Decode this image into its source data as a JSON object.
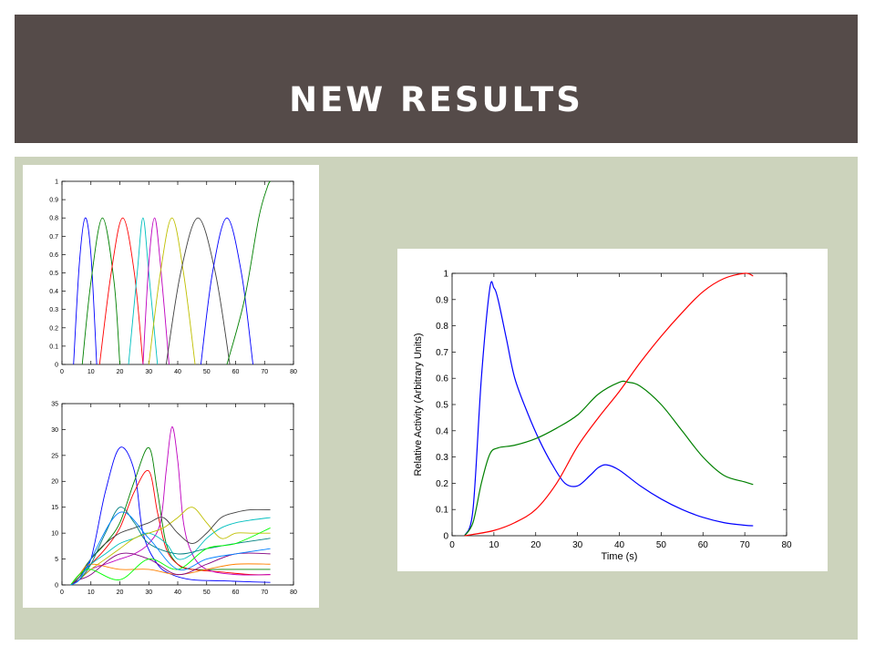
{
  "slide": {
    "title": "NEW RESULTS",
    "header_color": "#554b49",
    "background_color": "#ccd3bc"
  },
  "chart_data": [
    {
      "type": "line",
      "title": "",
      "xlabel": "",
      "ylabel": "",
      "xlim": [
        0,
        80
      ],
      "ylim": [
        0,
        1
      ],
      "xticks": [
        0,
        10,
        20,
        30,
        40,
        50,
        60,
        70,
        80
      ],
      "yticks": [
        0,
        0.1,
        0.2,
        0.3,
        0.4,
        0.5,
        0.6,
        0.7,
        0.8,
        0.9,
        1
      ],
      "grid": false,
      "legend": "none",
      "series": [
        {
          "color": "#0000ff",
          "x": [
            4,
            6,
            8,
            10,
            12
          ],
          "y": [
            0,
            0.55,
            0.8,
            0.6,
            0
          ]
        },
        {
          "color": "#008000",
          "x": [
            7,
            10,
            14,
            18,
            20
          ],
          "y": [
            0,
            0.45,
            0.8,
            0.45,
            0
          ]
        },
        {
          "color": "#ff0000",
          "x": [
            13,
            17,
            21,
            25,
            28
          ],
          "y": [
            0,
            0.5,
            0.8,
            0.5,
            0
          ]
        },
        {
          "color": "#00bfbf",
          "x": [
            23,
            26,
            28,
            30,
            33
          ],
          "y": [
            0,
            0.5,
            0.8,
            0.5,
            0
          ]
        },
        {
          "color": "#bf00bf",
          "x": [
            28,
            30,
            32,
            34,
            37
          ],
          "y": [
            0,
            0.55,
            0.8,
            0.55,
            0
          ]
        },
        {
          "color": "#bfbf00",
          "x": [
            30,
            34,
            38,
            42,
            46
          ],
          "y": [
            0,
            0.5,
            0.8,
            0.5,
            0
          ]
        },
        {
          "color": "#404040",
          "x": [
            36,
            41,
            47,
            53,
            58
          ],
          "y": [
            0,
            0.5,
            0.8,
            0.5,
            0
          ]
        },
        {
          "color": "#0000ff",
          "x": [
            48,
            52,
            57,
            62,
            66
          ],
          "y": [
            0,
            0.5,
            0.8,
            0.5,
            0
          ]
        },
        {
          "color": "#008000",
          "x": [
            57,
            63,
            68,
            71,
            72
          ],
          "y": [
            0,
            0.35,
            0.8,
            0.97,
            1.0
          ]
        }
      ]
    },
    {
      "type": "line",
      "title": "",
      "xlabel": "",
      "ylabel": "",
      "xlim": [
        0,
        80
      ],
      "ylim": [
        0,
        35
      ],
      "xticks": [
        0,
        10,
        20,
        30,
        40,
        50,
        60,
        70,
        80
      ],
      "yticks": [
        0,
        5,
        10,
        15,
        20,
        25,
        30,
        35
      ],
      "grid": false,
      "legend": "none",
      "series": [
        {
          "color": "#0000ff",
          "x": [
            3,
            6,
            10,
            15,
            20,
            25,
            28,
            33,
            38,
            45,
            55,
            65,
            72
          ],
          "y": [
            0,
            2,
            5,
            18,
            26.5,
            22,
            10,
            4,
            2,
            1,
            0.8,
            0.6,
            0.5
          ]
        },
        {
          "color": "#008000",
          "x": [
            3,
            6,
            10,
            15,
            20,
            25,
            30,
            33,
            36,
            40,
            45,
            55,
            65,
            72
          ],
          "y": [
            0,
            2,
            5,
            8,
            12,
            20,
            26.5,
            18,
            8,
            4,
            3,
            3,
            3,
            3
          ]
        },
        {
          "color": "#ff0000",
          "x": [
            3,
            6,
            10,
            15,
            20,
            25,
            30,
            33,
            36,
            40,
            45,
            55,
            65,
            72
          ],
          "y": [
            0,
            1.5,
            4,
            7,
            11,
            18,
            22,
            14,
            7,
            4,
            3,
            2.5,
            2,
            2
          ]
        },
        {
          "color": "#bf00bf",
          "x": [
            3,
            6,
            10,
            15,
            20,
            25,
            30,
            34,
            36,
            38,
            40,
            42,
            45,
            50,
            60,
            72
          ],
          "y": [
            0,
            1,
            3,
            4,
            5,
            6,
            8,
            12,
            22,
            30.5,
            24,
            12,
            6,
            3,
            2,
            2
          ]
        },
        {
          "color": "#00bfbf",
          "x": [
            3,
            6,
            10,
            15,
            20,
            25,
            30,
            36,
            40,
            45,
            50,
            55,
            60,
            65,
            72
          ],
          "y": [
            0,
            1.5,
            4,
            6,
            8,
            9,
            10,
            8,
            5,
            6,
            9,
            11,
            12,
            12.5,
            13
          ]
        },
        {
          "color": "#bfbf00",
          "x": [
            3,
            6,
            10,
            15,
            20,
            25,
            30,
            35,
            40,
            45,
            50,
            55,
            60,
            65,
            72
          ],
          "y": [
            0,
            1,
            3,
            5,
            7,
            9,
            10,
            11,
            13,
            15,
            12,
            9,
            10,
            10,
            10
          ]
        },
        {
          "color": "#404040",
          "x": [
            3,
            6,
            10,
            15,
            20,
            25,
            30,
            35,
            40,
            45,
            50,
            55,
            60,
            65,
            72
          ],
          "y": [
            0,
            1.5,
            5,
            8,
            10,
            11,
            12,
            13,
            10,
            8,
            10,
            13,
            14,
            14.5,
            14.5
          ]
        },
        {
          "color": "#ff8000",
          "x": [
            3,
            6,
            10,
            20,
            30,
            40,
            50,
            60,
            72
          ],
          "y": [
            0,
            2,
            4,
            3,
            3,
            2,
            3,
            4,
            4
          ]
        },
        {
          "color": "#008080",
          "x": [
            3,
            6,
            10,
            15,
            20,
            25,
            30,
            40,
            50,
            60,
            72
          ],
          "y": [
            0,
            1,
            4,
            10,
            15,
            12,
            8,
            6,
            7,
            8,
            9
          ]
        },
        {
          "color": "#800080",
          "x": [
            3,
            6,
            10,
            20,
            30,
            40,
            50,
            60,
            72
          ],
          "y": [
            0,
            1,
            2,
            6,
            5,
            2,
            4,
            6,
            6
          ]
        },
        {
          "color": "#00ff00",
          "x": [
            3,
            6,
            10,
            20,
            30,
            40,
            50,
            60,
            72
          ],
          "y": [
            0,
            2,
            3,
            1,
            5,
            3,
            7,
            8,
            11
          ]
        },
        {
          "color": "#0080ff",
          "x": [
            3,
            6,
            10,
            20,
            30,
            40,
            50,
            60,
            72
          ],
          "y": [
            0,
            1,
            5,
            14,
            9,
            3,
            5,
            6,
            7
          ]
        }
      ]
    },
    {
      "type": "line",
      "title": "",
      "xlabel": "Time (s)",
      "ylabel": "Relative Activity (Arbitrary Units)",
      "xlim": [
        0,
        80
      ],
      "ylim": [
        0,
        1
      ],
      "xticks": [
        0,
        10,
        20,
        30,
        40,
        50,
        60,
        70,
        80
      ],
      "yticks": [
        0,
        0.1,
        0.2,
        0.3,
        0.4,
        0.5,
        0.6,
        0.7,
        0.8,
        0.9,
        1
      ],
      "grid": false,
      "legend": "none",
      "series": [
        {
          "color": "#0000ff",
          "x": [
            3,
            5,
            7,
            9,
            10,
            11,
            13,
            15,
            18,
            21,
            24,
            27,
            30,
            33,
            35,
            37,
            40,
            45,
            50,
            55,
            60,
            65,
            70,
            72
          ],
          "y": [
            0,
            0.1,
            0.6,
            0.94,
            0.945,
            0.9,
            0.75,
            0.6,
            0.47,
            0.36,
            0.27,
            0.2,
            0.19,
            0.23,
            0.26,
            0.27,
            0.25,
            0.19,
            0.14,
            0.1,
            0.07,
            0.05,
            0.04,
            0.038
          ]
        },
        {
          "color": "#008000",
          "x": [
            3,
            5,
            7,
            9,
            11,
            15,
            20,
            25,
            30,
            35,
            40,
            42,
            45,
            50,
            55,
            60,
            65,
            70,
            72
          ],
          "y": [
            0,
            0.05,
            0.2,
            0.31,
            0.335,
            0.345,
            0.37,
            0.41,
            0.46,
            0.54,
            0.585,
            0.585,
            0.57,
            0.5,
            0.4,
            0.3,
            0.23,
            0.205,
            0.195
          ]
        },
        {
          "color": "#ff0000",
          "x": [
            3,
            5,
            10,
            15,
            20,
            25,
            30,
            35,
            40,
            45,
            50,
            55,
            60,
            65,
            70,
            72
          ],
          "y": [
            0,
            0.005,
            0.02,
            0.05,
            0.1,
            0.2,
            0.34,
            0.45,
            0.55,
            0.66,
            0.76,
            0.85,
            0.93,
            0.98,
            1.0,
            0.99
          ]
        }
      ]
    }
  ]
}
